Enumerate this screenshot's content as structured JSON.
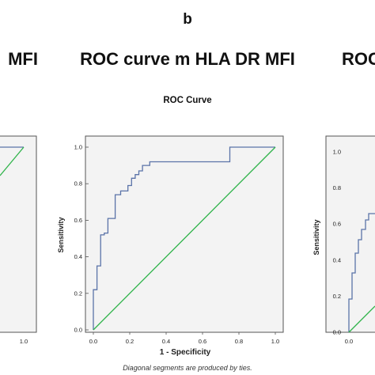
{
  "figure": {
    "panel_letter": "b",
    "title_center": "ROC curve m HLA DR MFI",
    "title_left_fragment": "MFI",
    "title_right_fragment": "ROC",
    "footnote": "Diagonal segments are produced by ties."
  },
  "chart_data": [
    {
      "type": "line",
      "title": "ROC Curve",
      "xlabel": "1 - Specificity",
      "ylabel": "Sensitivity",
      "xlim": [
        0,
        1
      ],
      "ylim": [
        0,
        1
      ],
      "xticks": [
        "0.0",
        "0.2",
        "0.4",
        "0.6",
        "0.8",
        "1.0"
      ],
      "yticks": [
        "0.0",
        "0.2",
        "0.4",
        "0.6",
        "0.8",
        "1.0"
      ],
      "series": [
        {
          "role": "roc",
          "color": "#5a73a8",
          "x": [
            0,
            0,
            0.02,
            0.02,
            0.04,
            0.04,
            0.06,
            0.06,
            0.08,
            0.08,
            0.12,
            0.12,
            0.15,
            0.15,
            0.19,
            0.19,
            0.21,
            0.21,
            0.23,
            0.23,
            0.25,
            0.25,
            0.27,
            0.27,
            0.31,
            0.31,
            0.75,
            0.75,
            1.0
          ],
          "y": [
            0,
            0.22,
            0.22,
            0.35,
            0.35,
            0.52,
            0.52,
            0.53,
            0.53,
            0.61,
            0.61,
            0.74,
            0.74,
            0.76,
            0.76,
            0.79,
            0.79,
            0.83,
            0.83,
            0.85,
            0.85,
            0.87,
            0.87,
            0.9,
            0.9,
            0.92,
            0.92,
            1.0,
            1.0
          ]
        },
        {
          "role": "reference",
          "color": "#2fb34a",
          "x": [
            0,
            1
          ],
          "y": [
            0,
            1
          ]
        }
      ]
    }
  ],
  "side_panels": {
    "left_xtick": "1.0",
    "right_yticks": [
      "1.0",
      "0.8",
      "0.6",
      "0.4",
      "0.2",
      "0.0"
    ],
    "right_ylabel": "Sensitivity",
    "right_xtick": "0.0"
  }
}
